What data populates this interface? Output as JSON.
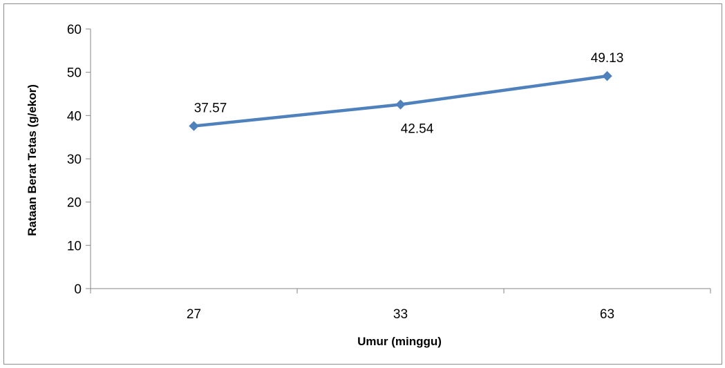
{
  "chart_data": {
    "type": "line",
    "title": "",
    "xlabel": "Umur (minggu)",
    "ylabel": "Rataan Berat Tetas (g/ekor)",
    "categories": [
      "27",
      "33",
      "63"
    ],
    "series": [
      {
        "values": [
          37.57,
          42.54,
          49.13
        ],
        "labels": [
          "37.57",
          "42.54",
          "49.13"
        ],
        "color": "#4F81BD"
      }
    ],
    "ylim": [
      0,
      60
    ],
    "yticks": [
      "0",
      "10",
      "20",
      "30",
      "40",
      "50",
      "60"
    ],
    "grid": false,
    "legend": "none",
    "marker": "diamond"
  }
}
